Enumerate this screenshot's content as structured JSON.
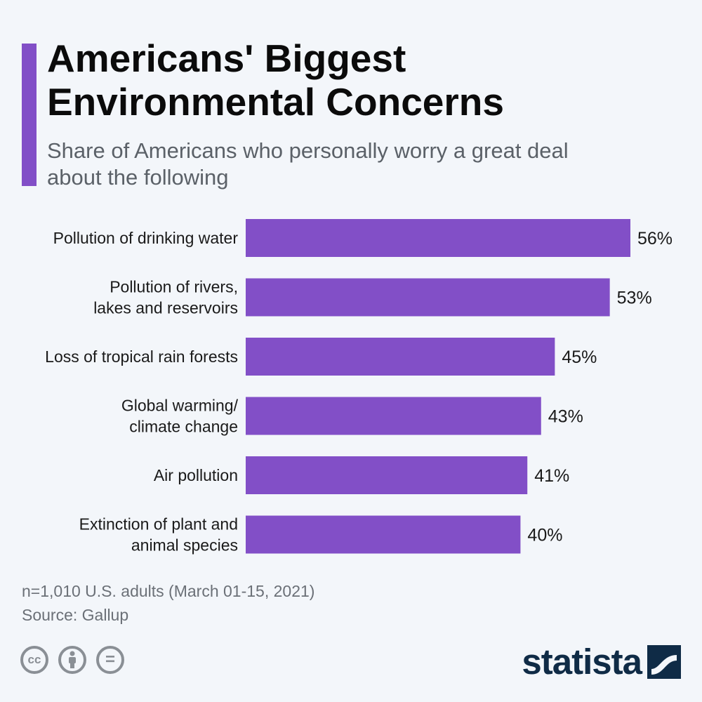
{
  "header": {
    "title": "Americans' Biggest Environmental Concerns",
    "subtitle": "Share of Americans who personally worry a great deal about the following"
  },
  "colors": {
    "accent": "#824fc7",
    "bar": "#824fc7",
    "brand": "#0f2b46"
  },
  "chart_data": {
    "type": "bar",
    "orientation": "horizontal",
    "title": "Americans' Biggest Environmental Concerns",
    "subtitle": "Share of Americans who personally worry a great deal about the following",
    "categories": [
      [
        "Pollution of drinking water"
      ],
      [
        "Pollution of rivers,",
        "lakes and reservoirs"
      ],
      [
        "Loss of tropical rain forests"
      ],
      [
        "Global warming/",
        "climate change"
      ],
      [
        "Air pollution"
      ],
      [
        "Extinction of plant and",
        "animal species"
      ]
    ],
    "values": [
      56,
      53,
      45,
      43,
      41,
      40
    ],
    "value_labels": [
      "56%",
      "53%",
      "45%",
      "43%",
      "41%",
      "40%"
    ],
    "unit": "%",
    "xlim": [
      0,
      56
    ],
    "grid": false,
    "legend": "none"
  },
  "footer": {
    "note": "n=1,010 U.S. adults (March 01-15, 2021)",
    "source": "Source: Gallup",
    "license_icons": [
      "creative-commons-icon",
      "attribution-icon",
      "no-derivatives-icon"
    ],
    "license_cc_text": "cc",
    "license_nd_text": "=",
    "brand": "statista"
  }
}
